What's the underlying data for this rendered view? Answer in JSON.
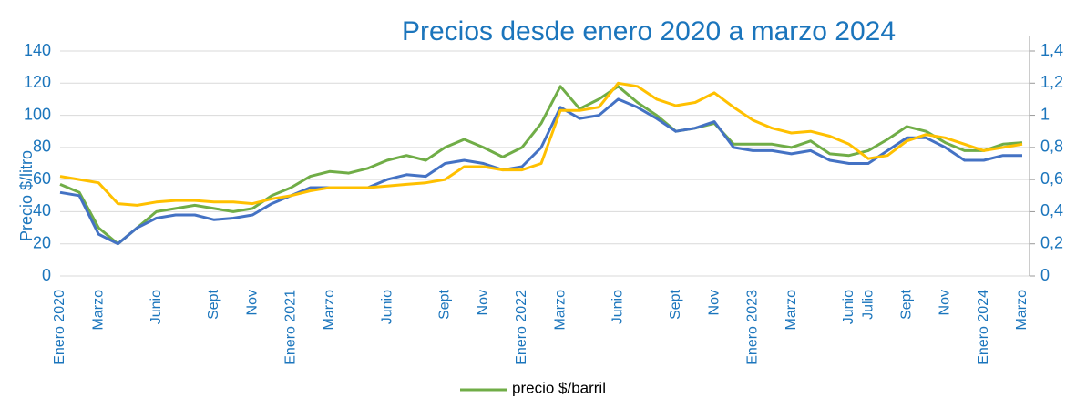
{
  "chart_data": {
    "type": "line",
    "title": "Precios desde enero 2020 a marzo 2024",
    "y_label": "Precio $/litro",
    "categories": [
      "Enero 2020",
      null,
      "Marzo",
      null,
      null,
      "Junio",
      null,
      null,
      "Sept",
      null,
      "Nov",
      null,
      "Enero 2021",
      null,
      "Marzo",
      null,
      null,
      "Junio",
      null,
      null,
      "Sept",
      null,
      "Nov",
      null,
      "Enero 2022",
      null,
      "Marzo",
      null,
      null,
      "Junio",
      null,
      null,
      "Sept",
      null,
      "Nov",
      null,
      "Enero 2023",
      null,
      "Marzo",
      null,
      null,
      "Junio",
      "Julio",
      null,
      "Sept",
      null,
      "Nov",
      null,
      "Enero 2024",
      null,
      "Marzo"
    ],
    "series": [
      {
        "name": "precio $/barril",
        "color": "#70ad47",
        "values": [
          57,
          52,
          30,
          20,
          30,
          40,
          42,
          44,
          42,
          40,
          42,
          50,
          55,
          62,
          65,
          64,
          67,
          72,
          75,
          72,
          80,
          85,
          80,
          74,
          80,
          95,
          118,
          104,
          110,
          118,
          108,
          100,
          90,
          92,
          95,
          82,
          82,
          82,
          80,
          84,
          76,
          75,
          78,
          85,
          93,
          90,
          83,
          78,
          78,
          82,
          83
        ]
      },
      {
        "color": "#4472c4",
        "values": [
          52,
          50,
          26,
          20,
          30,
          36,
          38,
          38,
          35,
          36,
          38,
          45,
          50,
          55,
          55,
          55,
          55,
          60,
          63,
          62,
          70,
          72,
          70,
          66,
          68,
          80,
          105,
          98,
          100,
          110,
          105,
          98,
          90,
          92,
          96,
          80,
          78,
          78,
          76,
          78,
          72,
          70,
          70,
          78,
          86,
          86,
          80,
          72,
          72,
          75,
          75
        ]
      },
      {
        "color": "#ffc000",
        "axis": "y2",
        "values": [
          0.62,
          0.6,
          0.58,
          0.45,
          0.44,
          0.46,
          0.47,
          0.47,
          0.46,
          0.46,
          0.45,
          0.48,
          0.5,
          0.53,
          0.55,
          0.55,
          0.55,
          0.56,
          0.57,
          0.58,
          0.6,
          0.68,
          0.68,
          0.66,
          0.66,
          0.7,
          1.03,
          1.03,
          1.05,
          1.2,
          1.18,
          1.1,
          1.06,
          1.08,
          1.14,
          1.05,
          0.97,
          0.92,
          0.89,
          0.9,
          0.87,
          0.82,
          0.73,
          0.75,
          0.84,
          0.88,
          0.86,
          0.82,
          0.78,
          0.8,
          0.82
        ]
      }
    ],
    "ylim": [
      0,
      140
    ],
    "yticks": [
      0,
      20,
      40,
      60,
      80,
      100,
      120,
      140
    ],
    "y2lim": [
      0,
      1.4
    ],
    "y2ticks": [
      0,
      {
        "value": 0.2,
        "label": "0,2"
      },
      {
        "value": 0.4,
        "label": "0,4"
      },
      {
        "value": 0.6,
        "label": "0,6"
      },
      {
        "value": 0.8,
        "label": "0,8"
      },
      1,
      {
        "value": 1.2,
        "label": "1,2"
      },
      {
        "value": 1.4,
        "label": "1,4"
      }
    ],
    "grid": true,
    "legend": "bottom"
  }
}
